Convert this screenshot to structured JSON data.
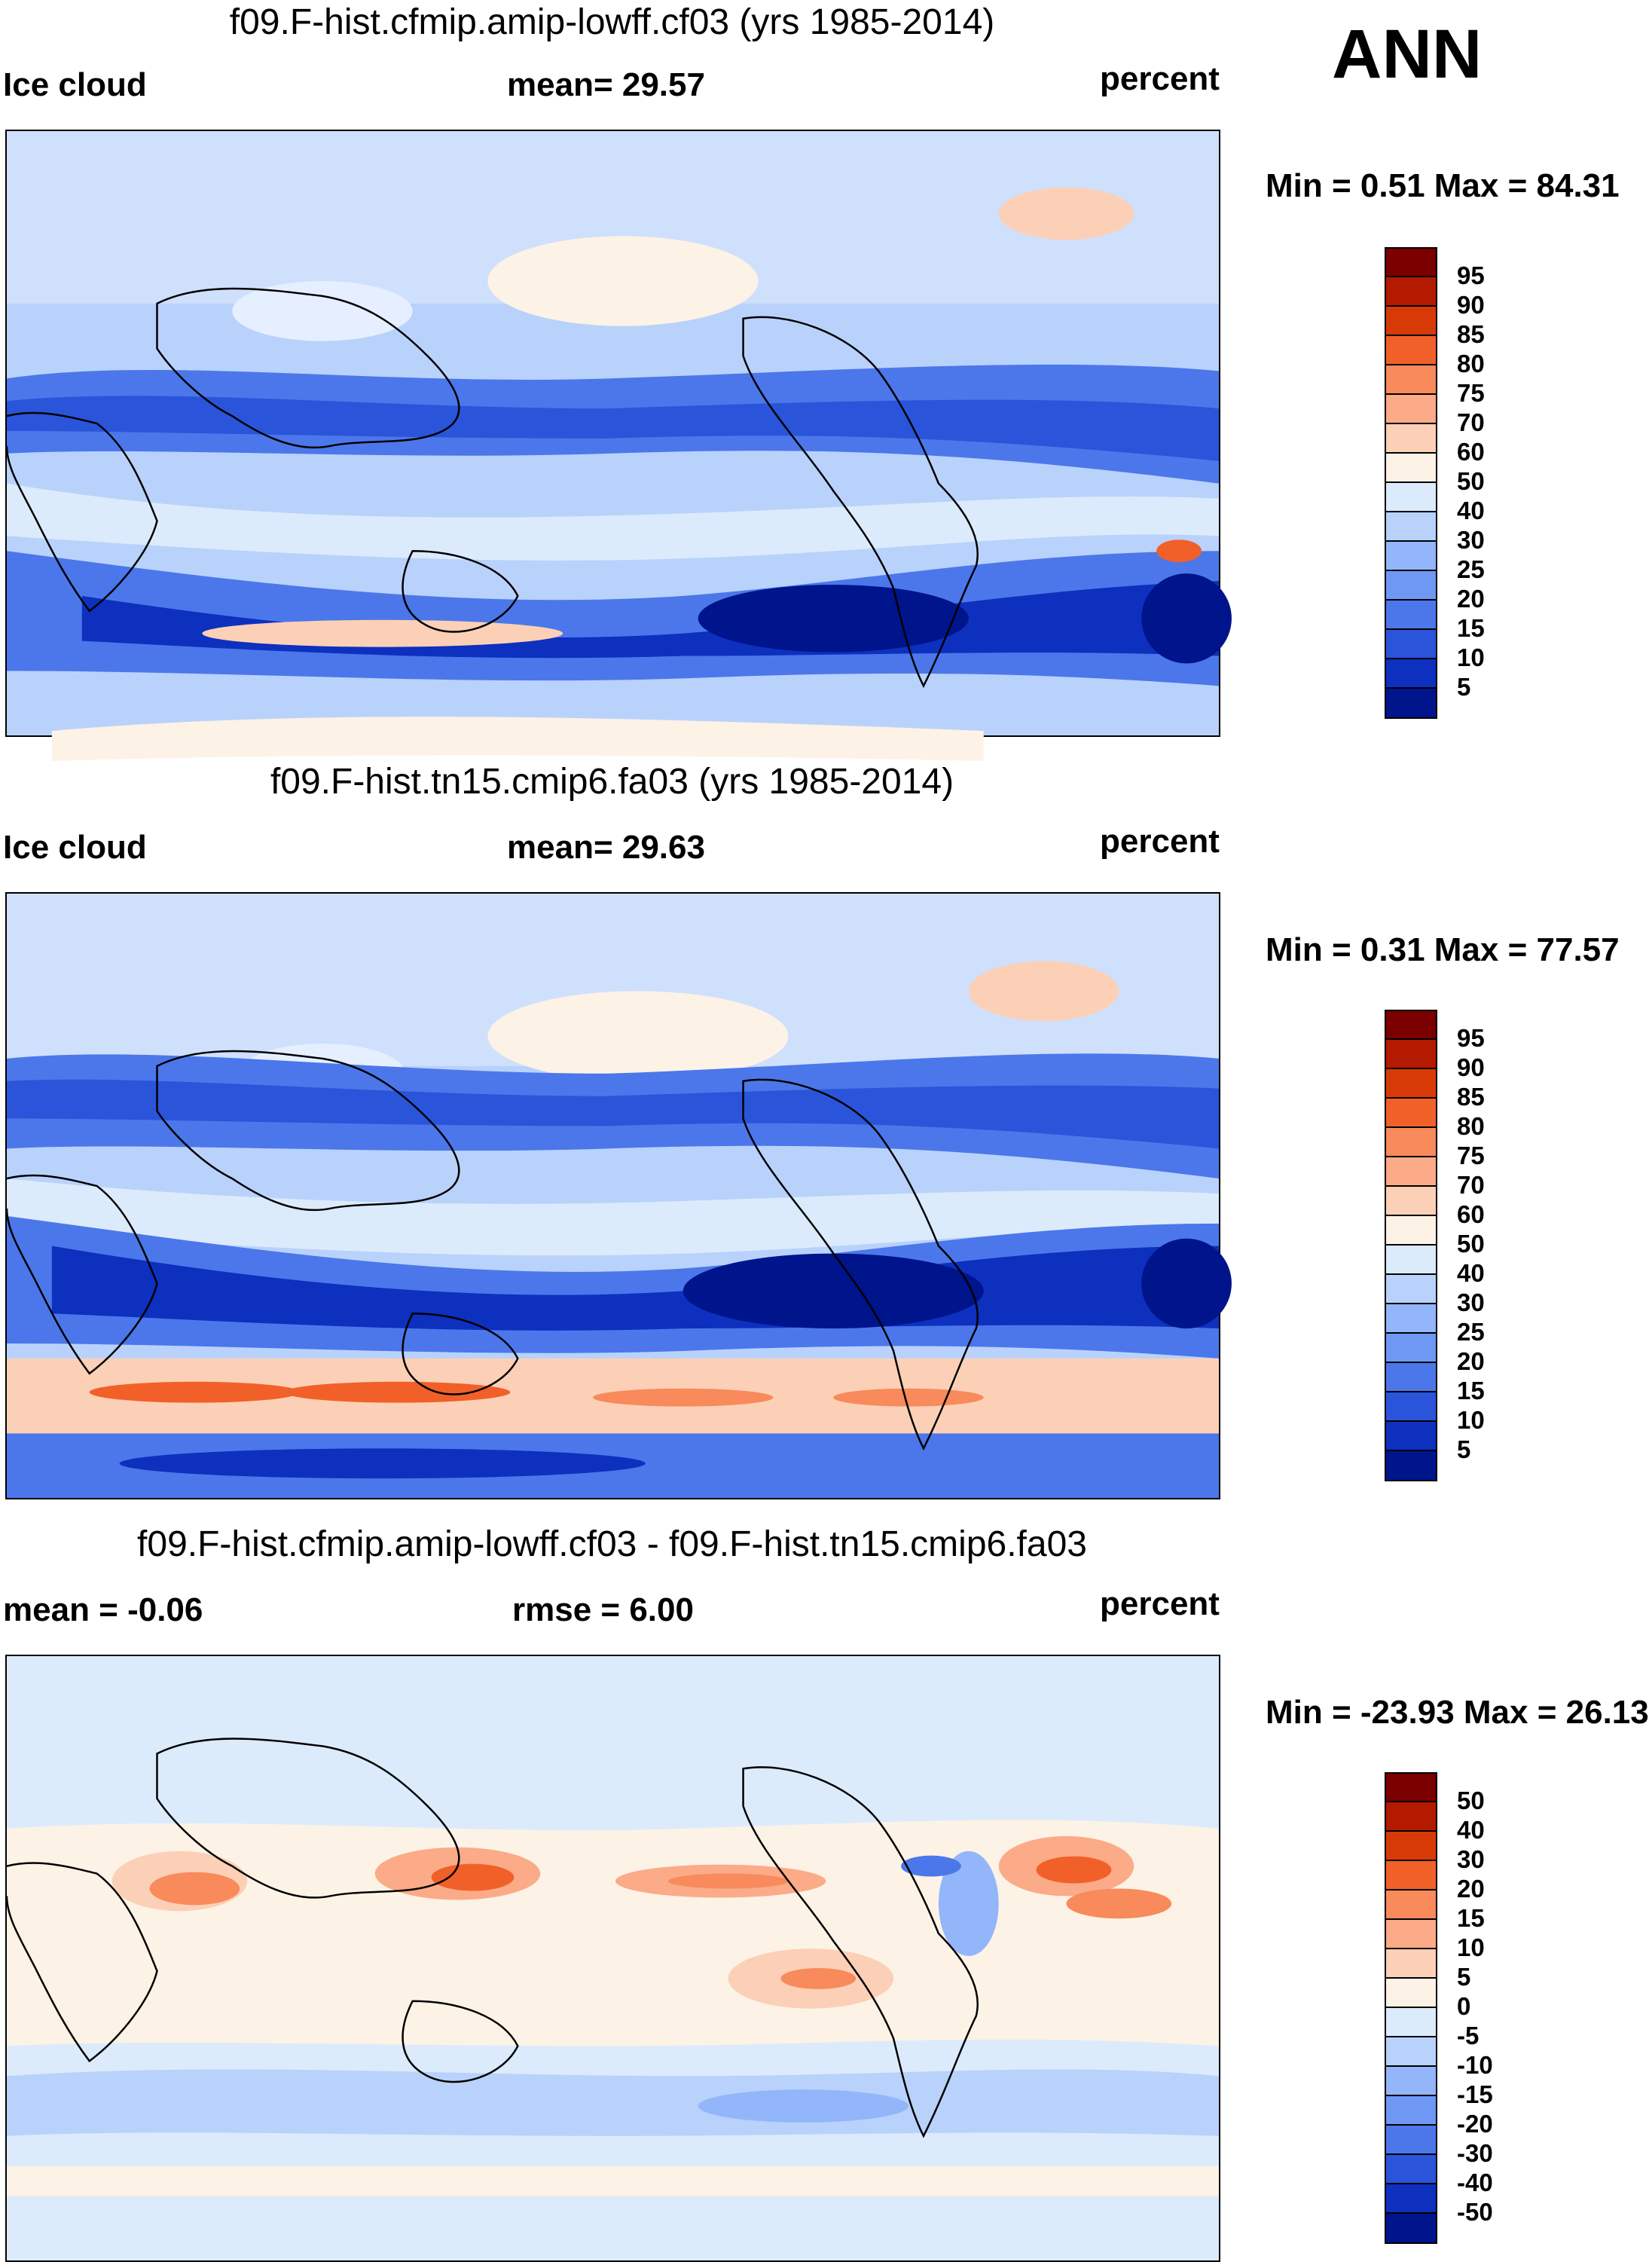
{
  "season": "ANN",
  "panels": [
    {
      "title": "f09.F-hist.cfmip.amip-lowff.cf03 (yrs 1985-2014)",
      "left_label": "Ice cloud",
      "center_label": "mean=  29.57",
      "right_label": "percent",
      "minmax": "Min =   0.51 Max =  84.31",
      "colorbar": {
        "levels": [
          "95",
          "90",
          "85",
          "80",
          "75",
          "70",
          "60",
          "50",
          "40",
          "30",
          "25",
          "20",
          "15",
          "10",
          "5"
        ],
        "colors": [
          "#7a0000",
          "#b41a00",
          "#d83a07",
          "#f2602a",
          "#f88a5b",
          "#fbab87",
          "#fcd0b6",
          "#fdf2e6",
          "#dcebfc",
          "#b9d2fb",
          "#93b6fa",
          "#6f98f4",
          "#4c77ea",
          "#2a55da",
          "#0d30bf",
          "#00148c"
        ]
      }
    },
    {
      "title": "f09.F-hist.tn15.cmip6.fa03 (yrs 1985-2014)",
      "left_label": "Ice cloud",
      "center_label": "mean=  29.63",
      "right_label": "percent",
      "minmax": "Min =   0.31 Max =  77.57",
      "colorbar": {
        "levels": [
          "95",
          "90",
          "85",
          "80",
          "75",
          "70",
          "60",
          "50",
          "40",
          "30",
          "25",
          "20",
          "15",
          "10",
          "5"
        ],
        "colors": [
          "#7a0000",
          "#b41a00",
          "#d83a07",
          "#f2602a",
          "#f88a5b",
          "#fbab87",
          "#fcd0b6",
          "#fdf2e6",
          "#dcebfc",
          "#b9d2fb",
          "#93b6fa",
          "#6f98f4",
          "#4c77ea",
          "#2a55da",
          "#0d30bf",
          "#00148c"
        ]
      }
    },
    {
      "title": "f09.F-hist.cfmip.amip-lowff.cf03 - f09.F-hist.tn15.cmip6.fa03",
      "left_label": "mean =  -0.06",
      "center_label": "rmse =    6.00",
      "right_label": "percent",
      "minmax": "Min = -23.93 Max =  26.13",
      "colorbar": {
        "levels": [
          "50",
          "40",
          "30",
          "20",
          "15",
          "10",
          "5",
          "0",
          "-5",
          "-10",
          "-15",
          "-20",
          "-30",
          "-40",
          "-50"
        ],
        "colors": [
          "#7a0000",
          "#b41a00",
          "#d83a07",
          "#f2602a",
          "#f88a5b",
          "#fbab87",
          "#fcd0b6",
          "#fdf2e6",
          "#dcebfc",
          "#b9d2fb",
          "#93b6fa",
          "#6f98f4",
          "#4c77ea",
          "#2a55da",
          "#0d30bf",
          "#00148c"
        ]
      }
    }
  ]
}
